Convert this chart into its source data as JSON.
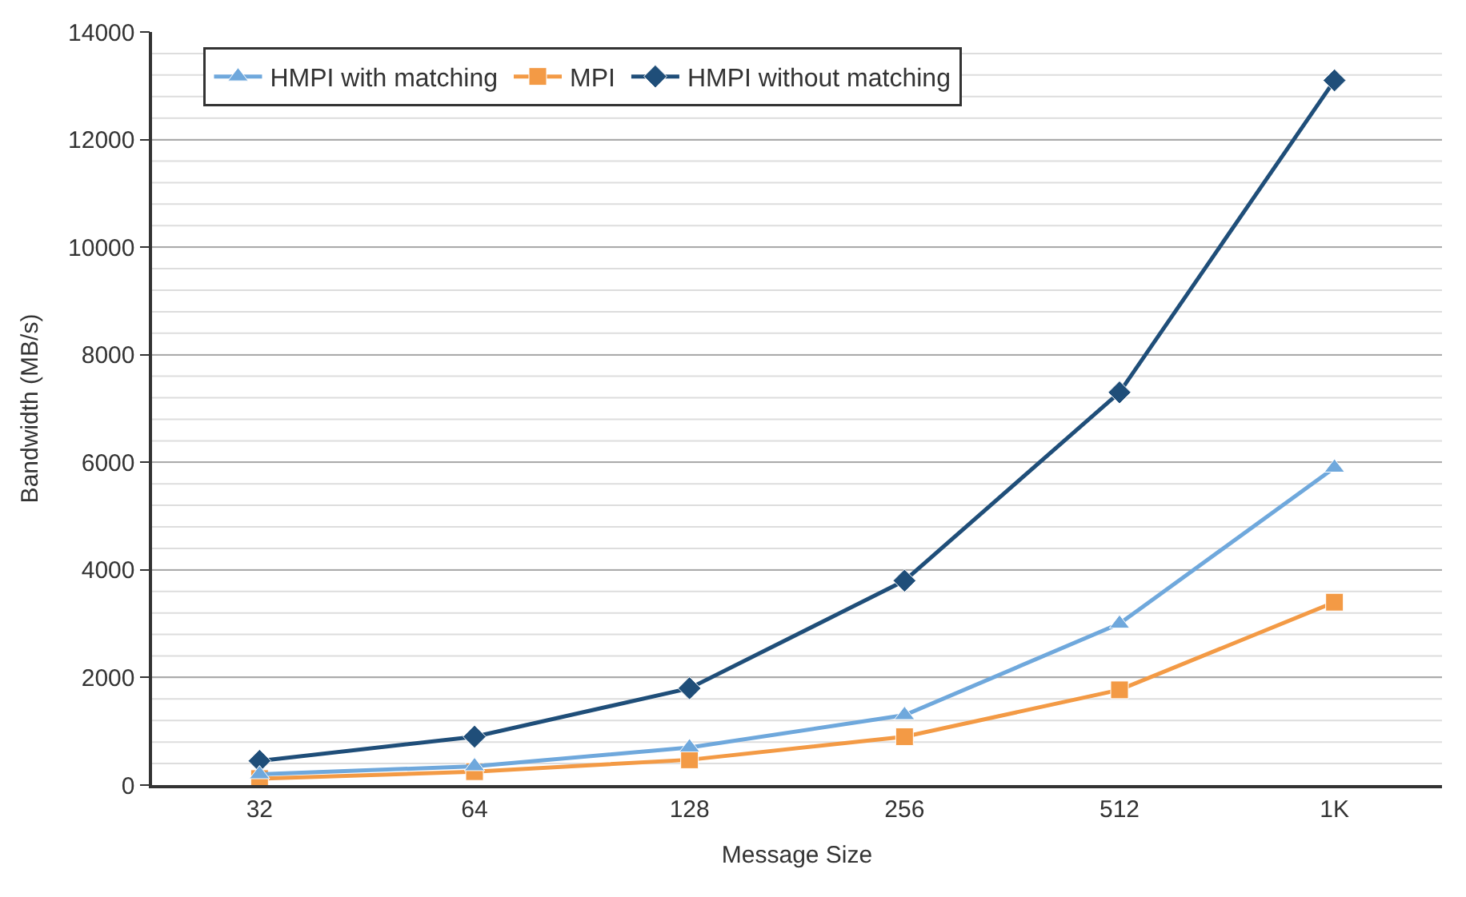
{
  "chart_data": {
    "type": "line",
    "xlabel": "Message Size",
    "ylabel": "Bandwidth (MB/s)",
    "categories": [
      "32",
      "64",
      "128",
      "256",
      "512",
      "1K"
    ],
    "series": [
      {
        "name": "HMPI with matching",
        "color": "#6fa8dc",
        "marker": "triangle",
        "values": [
          200,
          350,
          700,
          1300,
          3000,
          5900
        ]
      },
      {
        "name": "MPI",
        "color": "#f39a45",
        "marker": "square",
        "values": [
          120,
          250,
          470,
          900,
          1770,
          3400
        ]
      },
      {
        "name": "HMPI without matching",
        "color": "#1f4e79",
        "marker": "diamond",
        "values": [
          450,
          900,
          1800,
          3800,
          7300,
          13100
        ]
      }
    ],
    "ylim": [
      0,
      14000
    ],
    "yticks": [
      0,
      2000,
      4000,
      6000,
      8000,
      10000,
      12000,
      14000
    ],
    "grid": "y",
    "legend": "top left",
    "line_style": "solid"
  }
}
